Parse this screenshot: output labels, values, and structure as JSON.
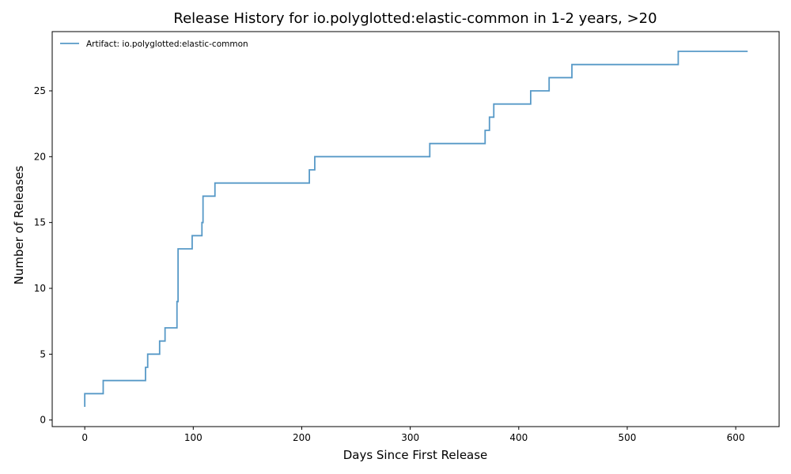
{
  "chart_data": {
    "type": "line",
    "title": "Release History for io.polyglotted:elastic-common in 1-2 years, >20",
    "xlabel": "Days Since First Release",
    "ylabel": "Number of Releases",
    "xlim": [
      -30,
      640
    ],
    "ylim": [
      -0.5,
      29.5
    ],
    "xticks": [
      0,
      100,
      200,
      300,
      400,
      500,
      600
    ],
    "yticks": [
      0,
      5,
      10,
      15,
      20,
      25
    ],
    "grid": false,
    "legend_position": "top-left",
    "step": "post",
    "series": [
      {
        "name": "Artifact: io.polyglotted:elastic-common",
        "color": "#1f77b4",
        "x": [
          0,
          0,
          17,
          56,
          58,
          69,
          72,
          74,
          85,
          86,
          86,
          99,
          108,
          109,
          120,
          207,
          212,
          318,
          369,
          373,
          377,
          411,
          428,
          449,
          547,
          611
        ],
        "y": [
          1,
          2,
          3,
          4,
          5,
          6,
          6,
          7,
          9,
          13,
          13,
          14,
          15,
          17,
          18,
          19,
          20,
          21,
          22,
          23,
          24,
          25,
          26,
          27,
          28,
          28
        ]
      }
    ]
  }
}
